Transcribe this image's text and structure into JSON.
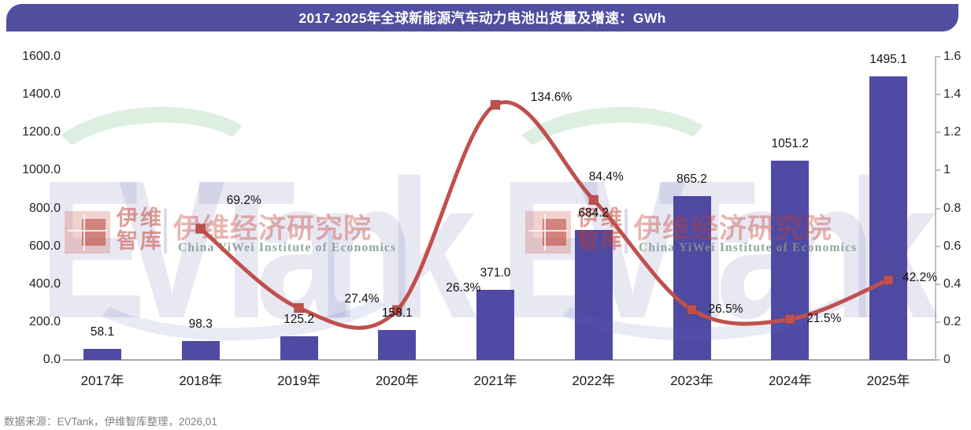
{
  "title": "2017-2025年全球新能源汽车动力电池出货量及增速：GWh",
  "footer": {
    "source": "数据来源：EVTank，伊维智库整理，2026,01"
  },
  "watermark": {
    "brand_big": "EVTank",
    "brand_cn_line1": "伊维",
    "brand_cn_line2": "智库",
    "institute_cn": "伊维经济研究院",
    "institute_en": "China YiWei Institute of Economics"
  },
  "colors": {
    "title_bar": "#514F9F",
    "bar": "#4F4AA3",
    "line": "#C0504D",
    "axis": "#BFBFBF"
  },
  "chart_data": {
    "type": "bar",
    "subtype": "bar+line combo, dual axis",
    "title": "2017-2025年全球新能源汽车动力电池出货量及增速：GWh",
    "categories": [
      "2017年",
      "2018年",
      "2019年",
      "2020年",
      "2021年",
      "2022年",
      "2023年",
      "2024年",
      "2025年"
    ],
    "series": [
      {
        "name": "动力电池出货量(GWh)",
        "type": "bar",
        "axis": "left",
        "values": [
          58.1,
          98.3,
          125.2,
          158.1,
          371.0,
          684.2,
          865.2,
          1051.2,
          1495.1
        ],
        "labels": [
          "58.1",
          "98.3",
          "125.2",
          "158.1",
          "371.0",
          "684.2",
          "865.2",
          "1051.2",
          "1495.1"
        ]
      },
      {
        "name": "增速",
        "type": "line",
        "axis": "right",
        "values": [
          null,
          0.692,
          0.274,
          0.263,
          1.346,
          0.844,
          0.265,
          0.215,
          0.422
        ],
        "labels": [
          null,
          "69.2%",
          "27.4%",
          "26.3%",
          "134.6%",
          "84.4%",
          "26.5%",
          "21.5%",
          "42.2%"
        ],
        "label_offsets": [
          null,
          [
            55,
            -35
          ],
          [
            80,
            -11
          ],
          [
            84,
            -28
          ],
          [
            71,
            -9
          ],
          [
            16,
            -29
          ],
          [
            43,
            0
          ],
          [
            43,
            0
          ],
          [
            40,
            -2
          ]
        ]
      }
    ],
    "left_axis": {
      "min": 0,
      "max": 1600,
      "step": 200,
      "tick_labels": [
        "0.0",
        "200.0",
        "400.0",
        "600.0",
        "800.0",
        "1000.0",
        "1200.0",
        "1400.0",
        "1600.0"
      ]
    },
    "right_axis": {
      "min": 0,
      "max": 1.6,
      "step": 0.2,
      "tick_labels": [
        "0",
        "0.2",
        "0.4",
        "0.6",
        "0.8",
        "1",
        "1.2",
        "1.4",
        "1.6"
      ]
    },
    "legend": "none",
    "grid": "off"
  }
}
